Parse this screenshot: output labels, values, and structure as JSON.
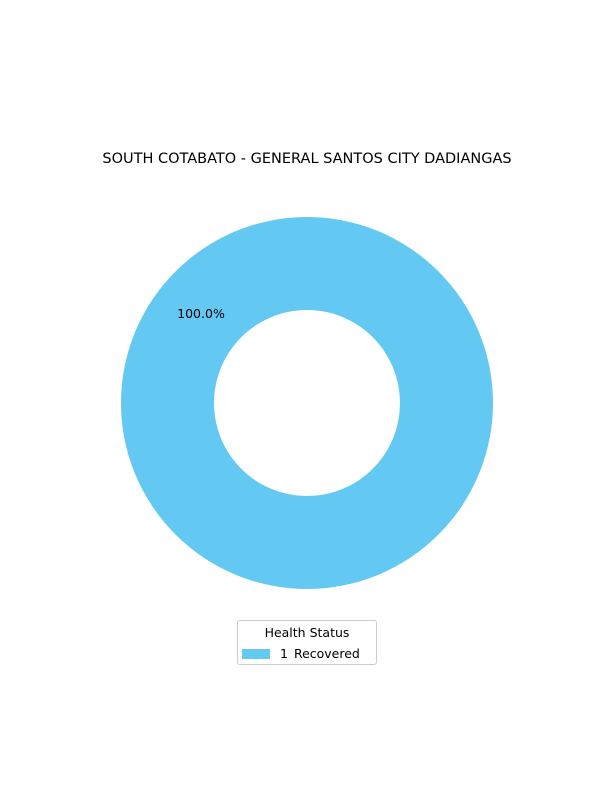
{
  "chart_data": {
    "type": "pie",
    "style": "donut",
    "title": "SOUTH COTABATO - GENERAL SANTOS CITY DADIANGAS",
    "slices": [
      {
        "label": "Recovered",
        "count": "1",
        "value": 1,
        "percent_label": "100.0%",
        "color": "#63c8f2"
      }
    ],
    "legend": {
      "title": "Health Status",
      "placement": "bottom-center"
    }
  }
}
